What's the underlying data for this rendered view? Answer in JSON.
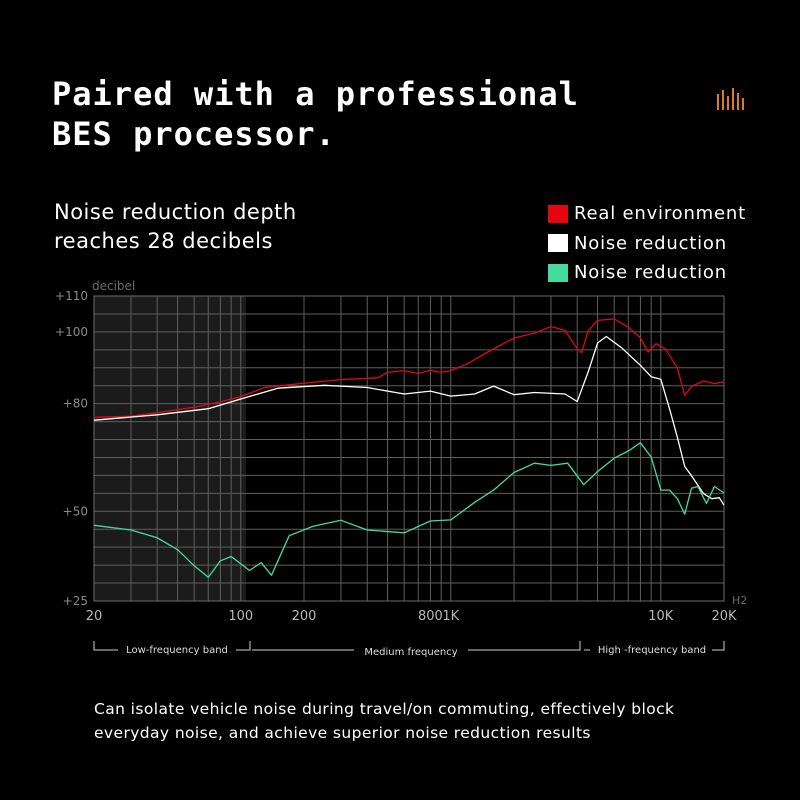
{
  "headline": {
    "line1": "Paired with a professional",
    "line2": "BES processor."
  },
  "brand_icon": "sound-bars-icon",
  "subtitle": {
    "line1": "Noise reduction depth",
    "line2": "reaches 28 decibels"
  },
  "legend": [
    {
      "label": "Real environment",
      "color": "#e3060f"
    },
    {
      "label": "Noise reduction",
      "color": "#ffffff"
    },
    {
      "label": "Noise reduction",
      "color": "#45dba0"
    }
  ],
  "bands": [
    {
      "label": "Low-frequency band"
    },
    {
      "label": "Medium frequency"
    },
    {
      "label": "High -frequency band"
    }
  ],
  "caption": "Can isolate vehicle noise during travel/on commuting, effectively block everyday noise, and achieve superior noise reduction results",
  "chart_data": {
    "type": "line",
    "ylabel": "decibel",
    "xunit": "Hz",
    "xscale": "log",
    "xlim": [
      20,
      20000
    ],
    "ylim": [
      25,
      110
    ],
    "yticks": [
      {
        "value": 25,
        "label": "+25"
      },
      {
        "value": 50,
        "label": "+50"
      },
      {
        "value": 80,
        "label": "+80"
      },
      {
        "value": 100,
        "label": "+100"
      },
      {
        "value": 110,
        "label": "+110"
      }
    ],
    "xticks": [
      {
        "value": 20,
        "label": "20"
      },
      {
        "value": 100,
        "label": "100"
      },
      {
        "value": 200,
        "label": "200"
      },
      {
        "value": 800,
        "label": "800"
      },
      {
        "value": 1000,
        "label": "1K"
      },
      {
        "value": 10000,
        "label": "10K"
      },
      {
        "value": 20000,
        "label": "20K"
      }
    ],
    "grid": true,
    "series": [
      {
        "name": "Real environment",
        "color": "#e3060f",
        "points": [
          [
            20,
            76.2
          ],
          [
            30,
            76.5
          ],
          [
            40,
            77.5
          ],
          [
            60,
            79
          ],
          [
            80,
            80.5
          ],
          [
            100,
            82
          ],
          [
            130,
            84.5
          ],
          [
            200,
            85.7
          ],
          [
            300,
            86.7
          ],
          [
            450,
            87.2
          ],
          [
            500,
            88.7
          ],
          [
            600,
            89.2
          ],
          [
            700,
            88.4
          ],
          [
            800,
            89.3
          ],
          [
            900,
            88.7
          ],
          [
            1000,
            89.2
          ],
          [
            1200,
            91.1
          ],
          [
            1500,
            94.4
          ],
          [
            2000,
            98.3
          ],
          [
            2500,
            99.6
          ],
          [
            3000,
            101.5
          ],
          [
            3500,
            100.4
          ],
          [
            4000,
            95.3
          ],
          [
            4200,
            94.2
          ],
          [
            4500,
            100.2
          ],
          [
            5000,
            103.2
          ],
          [
            6000,
            103.6
          ],
          [
            7000,
            101.3
          ],
          [
            8000,
            98.3
          ],
          [
            8700,
            94.4
          ],
          [
            9500,
            96.7
          ],
          [
            10500,
            95.3
          ],
          [
            12000,
            90.0
          ],
          [
            13000,
            82.3
          ],
          [
            14000,
            84.8
          ],
          [
            16000,
            86.3
          ],
          [
            18000,
            85.6
          ],
          [
            20000,
            86.1
          ]
        ]
      },
      {
        "name": "Noise reduction",
        "color": "#ffffff",
        "points": [
          [
            20,
            75.4
          ],
          [
            40,
            76.9
          ],
          [
            70,
            78.6
          ],
          [
            100,
            81.3
          ],
          [
            150,
            84.3
          ],
          [
            250,
            85.1
          ],
          [
            400,
            84.5
          ],
          [
            600,
            82.7
          ],
          [
            800,
            83.5
          ],
          [
            1000,
            82.1
          ],
          [
            1300,
            82.7
          ],
          [
            1600,
            84.9
          ],
          [
            2000,
            82.5
          ],
          [
            2500,
            83.1
          ],
          [
            3500,
            82.7
          ],
          [
            4000,
            80.6
          ],
          [
            4500,
            88.7
          ],
          [
            5000,
            96.9
          ],
          [
            5500,
            98.7
          ],
          [
            6500,
            95.6
          ],
          [
            8000,
            90.7
          ],
          [
            9000,
            87.5
          ],
          [
            10000,
            86.8
          ],
          [
            11000,
            78.6
          ],
          [
            12000,
            70.6
          ],
          [
            13000,
            62.5
          ],
          [
            14000,
            59.9
          ],
          [
            16000,
            54.9
          ],
          [
            17500,
            53.5
          ],
          [
            19000,
            53.8
          ],
          [
            20000,
            51.7
          ]
        ]
      },
      {
        "name": "Noise reduction",
        "color": "#45dba0",
        "points": [
          [
            20,
            46.1
          ],
          [
            30,
            44.8
          ],
          [
            40,
            42.6
          ],
          [
            50,
            39.3
          ],
          [
            60,
            34.8
          ],
          [
            70,
            31.6
          ],
          [
            80,
            36.2
          ],
          [
            90,
            37.4
          ],
          [
            110,
            33.5
          ],
          [
            125,
            35.7
          ],
          [
            140,
            32.2
          ],
          [
            170,
            43.2
          ],
          [
            220,
            45.8
          ],
          [
            300,
            47.5
          ],
          [
            400,
            44.8
          ],
          [
            600,
            44.0
          ],
          [
            800,
            47.3
          ],
          [
            1000,
            47.6
          ],
          [
            1300,
            52.5
          ],
          [
            1600,
            55.9
          ],
          [
            2000,
            60.8
          ],
          [
            2500,
            63.4
          ],
          [
            3000,
            62.8
          ],
          [
            3600,
            63.4
          ],
          [
            4300,
            57.4
          ],
          [
            5000,
            61.1
          ],
          [
            6000,
            64.8
          ],
          [
            7000,
            66.8
          ],
          [
            8000,
            69.1
          ],
          [
            9000,
            65.1
          ],
          [
            10000,
            55.9
          ],
          [
            11000,
            55.9
          ],
          [
            12000,
            53.5
          ],
          [
            13000,
            49.2
          ],
          [
            14000,
            56.4
          ],
          [
            15000,
            56.9
          ],
          [
            16500,
            52.2
          ],
          [
            18000,
            56.9
          ],
          [
            20000,
            55.1
          ]
        ]
      }
    ]
  }
}
